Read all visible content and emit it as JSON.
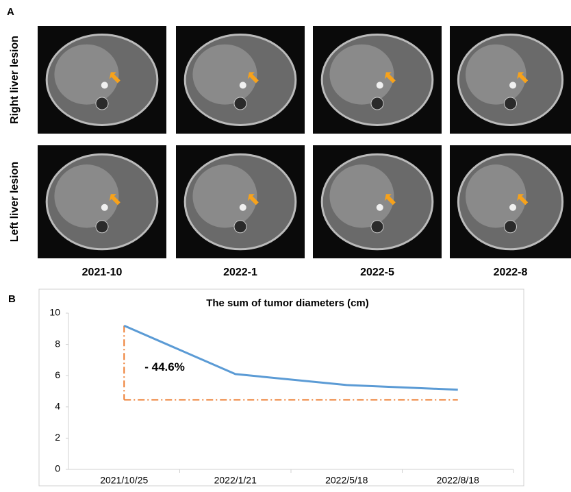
{
  "panel_a": {
    "label": "A",
    "row_labels": [
      "Right liver lesion",
      "Left  liver lesion"
    ],
    "column_labels": [
      "2021-10",
      "2022-1",
      "2022-5",
      "2022-8"
    ]
  },
  "panel_b": {
    "label": "B"
  },
  "chart_data": {
    "type": "line",
    "title": "The sum of tumor diameters (cm)",
    "categories": [
      "2021/10/25",
      "2022/1/21",
      "2022/5/18",
      "2022/8/18"
    ],
    "series": [
      {
        "name": "The sum of tumor diameters (cm)",
        "color": "#5b9bd5",
        "values": [
          9.2,
          6.1,
          5.4,
          5.1
        ]
      }
    ],
    "ylim": [
      0,
      10
    ],
    "yticks": [
      0,
      2,
      4,
      6,
      8,
      10
    ],
    "annotation": "- 44.6%",
    "reference_line": {
      "value": 4.45,
      "color": "#ed7d31"
    }
  }
}
